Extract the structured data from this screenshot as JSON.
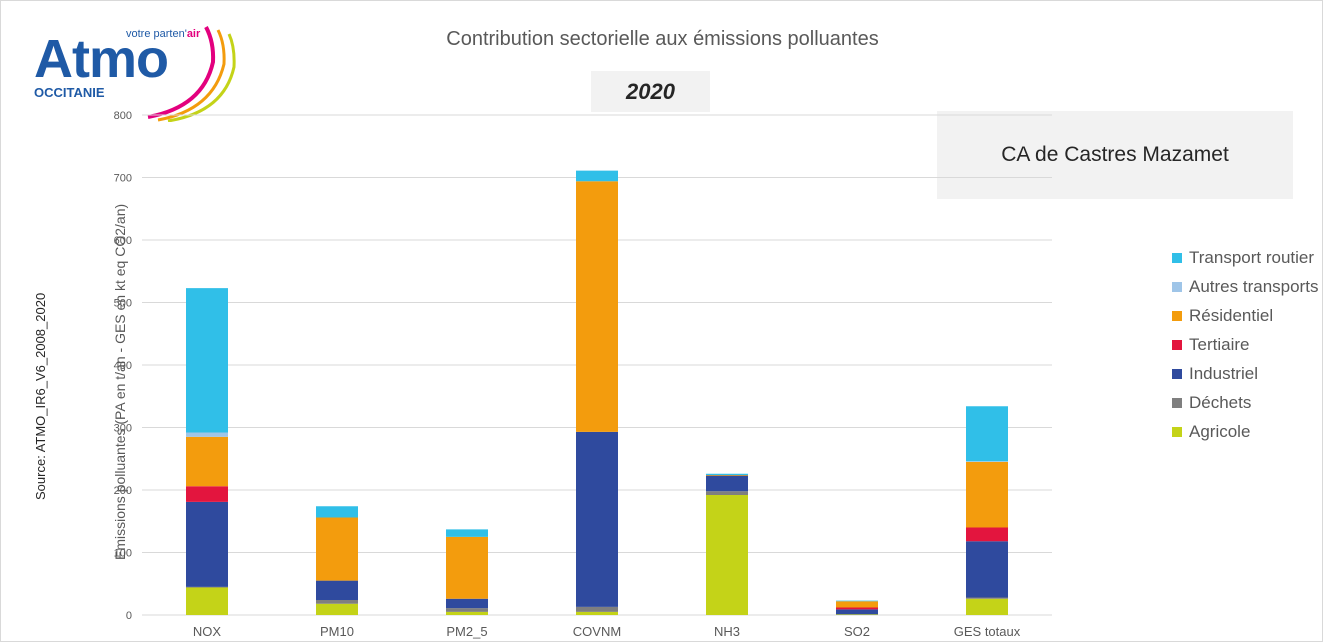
{
  "logo": {
    "tagline_pre": "votre parten'",
    "tagline_air": "air",
    "word": "Atmo",
    "region": "OCCITANIE"
  },
  "header": {
    "title": "Contribution sectorielle aux émissions polluantes",
    "year": "2020",
    "territory": "CA de Castres Mazamet"
  },
  "source_note": "Source: ATMO_IR6_V6_2008_2020",
  "chart_data": {
    "type": "bar",
    "stacked": true,
    "title": "Contribution sectorielle aux émissions polluantes",
    "ylabel": "Emissions polluantes (PA en t/an - GES en kt eq CO2/an)",
    "ylim": [
      0,
      800
    ],
    "yticks": [
      0,
      100,
      200,
      300,
      400,
      500,
      600,
      700,
      800
    ],
    "grid": true,
    "legend_position": "right",
    "categories": [
      "NOX",
      "PM10",
      "PM2_5",
      "COVNM",
      "NH3",
      "SO2",
      "GES totaux"
    ],
    "series": [
      {
        "name": "Agricole",
        "color": "#c4d318",
        "values": [
          44,
          18,
          5,
          5,
          192,
          1,
          26
        ]
      },
      {
        "name": "Déchets",
        "color": "#7f7f7f",
        "values": [
          1,
          6,
          6,
          8,
          6,
          0,
          2
        ]
      },
      {
        "name": "Industriel",
        "color": "#2f4a9e",
        "values": [
          136,
          31,
          15,
          280,
          25,
          8,
          90
        ]
      },
      {
        "name": "Tertiaire",
        "color": "#e3153e",
        "values": [
          25,
          0,
          0,
          0,
          0,
          3,
          22
        ]
      },
      {
        "name": "Résidentiel",
        "color": "#f39c0d",
        "values": [
          79,
          101,
          99,
          401,
          1,
          10,
          105
        ]
      },
      {
        "name": "Autres transports",
        "color": "#9fc5e8",
        "values": [
          7,
          0,
          0,
          0,
          0,
          0,
          1
        ]
      },
      {
        "name": "Transport routier",
        "color": "#30bfe8",
        "values": [
          231,
          18,
          12,
          17,
          2,
          1,
          88
        ]
      }
    ]
  }
}
